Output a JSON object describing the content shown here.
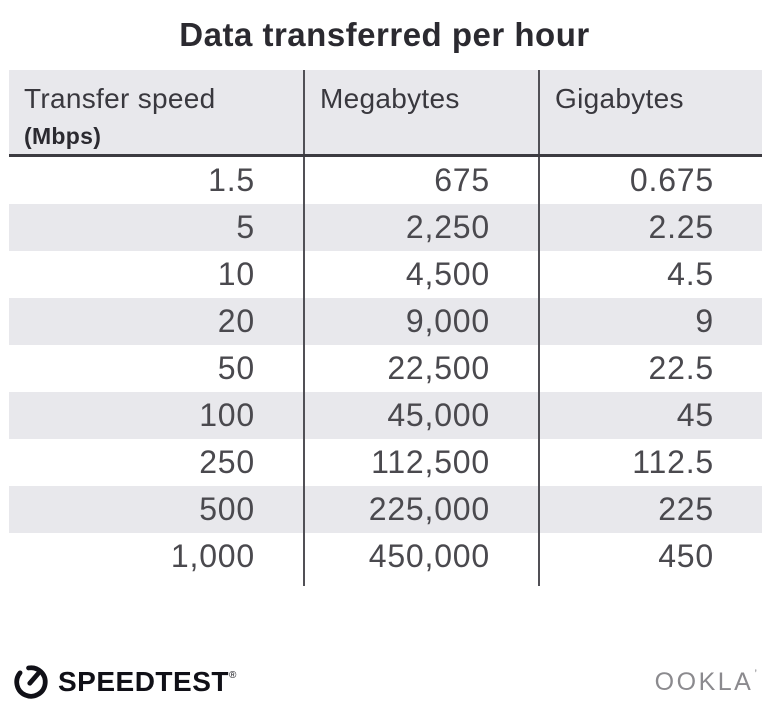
{
  "title": "Data transferred per hour",
  "table": {
    "columns": [
      {
        "label": "Transfer speed",
        "sublabel": "(Mbps)"
      },
      {
        "label": "Megabytes"
      },
      {
        "label": "Gigabytes"
      }
    ],
    "rows": [
      [
        "1.5",
        "675",
        "0.675"
      ],
      [
        "5",
        "2,250",
        "2.25"
      ],
      [
        "10",
        "4,500",
        "4.5"
      ],
      [
        "20",
        "9,000",
        "9"
      ],
      [
        "50",
        "22,500",
        "22.5"
      ],
      [
        "100",
        "45,000",
        "45"
      ],
      [
        "250",
        "112,500",
        "112.5"
      ],
      [
        "500",
        "225,000",
        "225"
      ],
      [
        "1,000",
        "450,000",
        "450"
      ]
    ]
  },
  "chart_data": {
    "type": "table",
    "title": "Data transferred per hour",
    "columns": [
      "Transfer speed (Mbps)",
      "Megabytes",
      "Gigabytes"
    ],
    "rows": [
      [
        1.5,
        675,
        0.675
      ],
      [
        5,
        2250,
        2.25
      ],
      [
        10,
        4500,
        4.5
      ],
      [
        20,
        9000,
        9
      ],
      [
        50,
        22500,
        22.5
      ],
      [
        100,
        45000,
        45
      ],
      [
        250,
        112500,
        112.5
      ],
      [
        500,
        225000,
        225
      ],
      [
        1000,
        450000,
        450
      ]
    ]
  },
  "footer": {
    "speedtest_label": "SPEEDTEST",
    "speedtest_trademark": "®",
    "ookla_label": "OOKLA",
    "ookla_trademark": "’"
  },
  "colors": {
    "row_band": "#e8e8ec",
    "divider": "#515056",
    "header_border": "#3c3b41",
    "title_ink": "#2b2a30",
    "number_ink": "#4a494e",
    "speedtest_ink": "#101017",
    "ookla_gray": "#8b8a8e"
  }
}
